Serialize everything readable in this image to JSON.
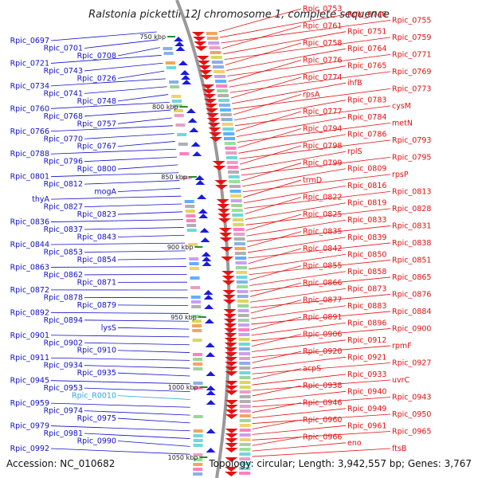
{
  "title": "Ralstonia pickettii 12J chromosome 1, complete sequence",
  "footer": {
    "accession": "Accession: NC_010682",
    "summary": "Topology: circular; Length: 3,942,557 bp; Genes: 3,767"
  },
  "colors": {
    "left_labels": "#1010c8",
    "right_labels": "#e01010",
    "rna_label": "#30a8d8",
    "backbone": "#888888",
    "tick": "#2a8a2a"
  },
  "kbp_marks": [
    {
      "label": "750 kbp",
      "kbp": 750
    },
    {
      "label": "800 kbp",
      "kbp": 800
    },
    {
      "label": "850 kbp",
      "kbp": 850
    },
    {
      "label": "900 kbp",
      "kbp": 900
    },
    {
      "label": "950 kbp",
      "kbp": 950
    },
    {
      "label": "1000 kbp",
      "kbp": 1000
    },
    {
      "label": "1050 kbp",
      "kbp": 1050
    }
  ],
  "left_genes": [
    {
      "name": "Rpic_0697",
      "kind": "cds"
    },
    {
      "name": "Rpic_0701",
      "kind": "cds"
    },
    {
      "name": "Rpic_0708",
      "kind": "cds"
    },
    {
      "name": "Rpic_0721",
      "kind": "cds"
    },
    {
      "name": "Rpic_0743",
      "kind": "cds"
    },
    {
      "name": "Rpic_0726",
      "kind": "cds"
    },
    {
      "name": "Rpic_0734",
      "kind": "cds"
    },
    {
      "name": "Rpic_0741",
      "kind": "cds"
    },
    {
      "name": "Rpic_0748",
      "kind": "cds"
    },
    {
      "name": "Rpic_0760",
      "kind": "cds"
    },
    {
      "name": "Rpic_0768",
      "kind": "cds"
    },
    {
      "name": "Rpic_0757",
      "kind": "cds"
    },
    {
      "name": "Rpic_0766",
      "kind": "cds"
    },
    {
      "name": "Rpic_0770",
      "kind": "cds"
    },
    {
      "name": "Rpic_0767",
      "kind": "cds"
    },
    {
      "name": "Rpic_0788",
      "kind": "cds"
    },
    {
      "name": "Rpic_0796",
      "kind": "cds"
    },
    {
      "name": "Rpic_0800",
      "kind": "cds"
    },
    {
      "name": "Rpic_0801",
      "kind": "cds"
    },
    {
      "name": "Rpic_0812",
      "kind": "cds"
    },
    {
      "name": "mogA",
      "kind": "cds"
    },
    {
      "name": "thyA",
      "kind": "cds"
    },
    {
      "name": "Rpic_0827",
      "kind": "cds"
    },
    {
      "name": "Rpic_0823",
      "kind": "cds"
    },
    {
      "name": "Rpic_0836",
      "kind": "cds"
    },
    {
      "name": "Rpic_0837",
      "kind": "cds"
    },
    {
      "name": "Rpic_0843",
      "kind": "cds"
    },
    {
      "name": "Rpic_0844",
      "kind": "cds"
    },
    {
      "name": "Rpic_0853",
      "kind": "cds"
    },
    {
      "name": "Rpic_0854",
      "kind": "cds"
    },
    {
      "name": "Rpic_0863",
      "kind": "cds"
    },
    {
      "name": "Rpic_0862",
      "kind": "cds"
    },
    {
      "name": "Rpic_0871",
      "kind": "cds"
    },
    {
      "name": "Rpic_0872",
      "kind": "cds"
    },
    {
      "name": "Rpic_0878",
      "kind": "cds"
    },
    {
      "name": "Rpic_0879",
      "kind": "cds"
    },
    {
      "name": "Rpic_0892",
      "kind": "cds"
    },
    {
      "name": "Rpic_0894",
      "kind": "cds"
    },
    {
      "name": "lysS",
      "kind": "cds"
    },
    {
      "name": "Rpic_0901",
      "kind": "cds"
    },
    {
      "name": "Rpic_0902",
      "kind": "cds"
    },
    {
      "name": "Rpic_0910",
      "kind": "cds"
    },
    {
      "name": "Rpic_0911",
      "kind": "cds"
    },
    {
      "name": "Rpic_0934",
      "kind": "cds"
    },
    {
      "name": "Rpic_0935",
      "kind": "cds"
    },
    {
      "name": "Rpic_0945",
      "kind": "cds"
    },
    {
      "name": "Rpic_0953",
      "kind": "cds"
    },
    {
      "name": "Rpic_R0010",
      "kind": "rna"
    },
    {
      "name": "Rpic_0959",
      "kind": "cds"
    },
    {
      "name": "Rpic_0974",
      "kind": "cds"
    },
    {
      "name": "Rpic_0975",
      "kind": "cds"
    },
    {
      "name": "Rpic_0979",
      "kind": "cds"
    },
    {
      "name": "Rpic_0981",
      "kind": "cds"
    },
    {
      "name": "Rpic_0990",
      "kind": "cds"
    },
    {
      "name": "Rpic_0992",
      "kind": "cds"
    }
  ],
  "right_genes": [
    "Rpic_0753",
    "Rpic_0746",
    "Rpic_0755",
    "Rpic_0761",
    "Rpic_0751",
    "Rpic_0759",
    "Rpic_0758",
    "Rpic_0764",
    "Rpic_0771",
    "Rpic_0776",
    "Rpic_0765",
    "Rpic_0769",
    "Rpic_0774",
    "ihfB",
    "Rpic_0773",
    "rpsA",
    "Rpic_0783",
    "cysM",
    "Rpic_0777",
    "Rpic_0784",
    "metN",
    "Rpic_0794",
    "Rpic_0786",
    "Rpic_0793",
    "Rpic_0798",
    "rplS",
    "Rpic_0795",
    "Rpic_0799",
    "Rpic_0809",
    "rpsP",
    "trmD",
    "Rpic_0816",
    "Rpic_0813",
    "Rpic_0822",
    "Rpic_0819",
    "Rpic_0828",
    "Rpic_0825",
    "Rpic_0833",
    "Rpic_0831",
    "Rpic_0835",
    "Rpic_0839",
    "Rpic_0838",
    "Rpic_0842",
    "Rpic_0850",
    "Rpic_0851",
    "Rpic_0855",
    "Rpic_0858",
    "Rpic_0865",
    "Rpic_0866",
    "Rpic_0873",
    "Rpic_0876",
    "Rpic_0877",
    "Rpic_0883",
    "Rpic_0884",
    "Rpic_0891",
    "Rpic_0896",
    "Rpic_0900",
    "Rpic_0906",
    "Rpic_0912",
    "rpmF",
    "Rpic_0920",
    "Rpic_0921",
    "Rpic_0927",
    "acpS",
    "Rpic_0933",
    "uvrC",
    "Rpic_0938",
    "Rpic_0940",
    "Rpic_0943",
    "Rpic_0946",
    "Rpic_0949",
    "Rpic_0950",
    "Rpic_0960",
    "Rpic_0961",
    "Rpic_0965",
    "Rpic_0966",
    "eno",
    "ftsB"
  ]
}
